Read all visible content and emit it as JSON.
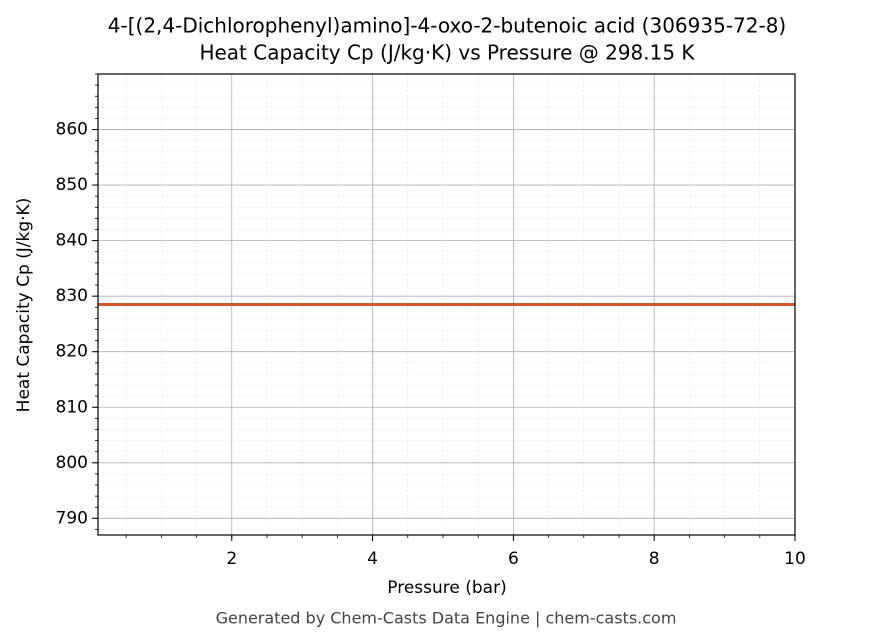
{
  "chart_data": {
    "type": "line",
    "title": "4-[(2,4-Dichlorophenyl)amino]-4-oxo-2-butenoic acid (306935-72-8)",
    "subtitle": "Heat Capacity Cp (J/kg·K) vs Pressure @ 298.15 K",
    "x_label": "Pressure (bar)",
    "y_label": "Heat Capacity Cp (J/kg·K)",
    "footer": "Generated by Chem-Casts Data Engine | chem-casts.com",
    "x": [
      0.1,
      10
    ],
    "series": [
      {
        "name": "Cp",
        "color": "#d2572b",
        "values": [
          828.5,
          828.5
        ]
      }
    ],
    "xlim": [
      0.1,
      10
    ],
    "xticks": [
      2,
      4,
      6,
      8,
      10
    ],
    "ylim": [
      787,
      870
    ],
    "yticks": [
      790,
      800,
      810,
      820,
      830,
      840,
      850,
      860
    ],
    "grid": true,
    "minor_grid": true
  }
}
